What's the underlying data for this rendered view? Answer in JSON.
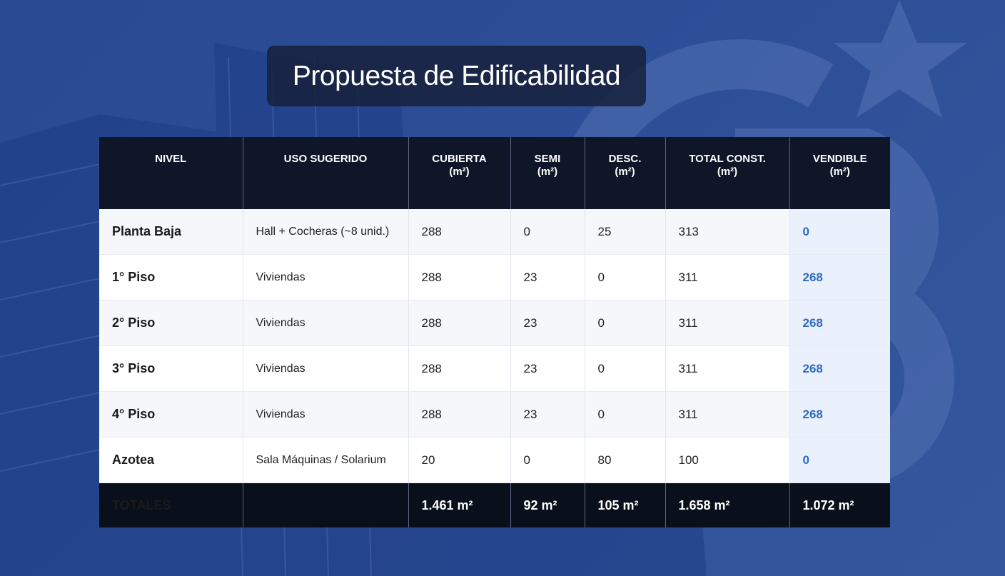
{
  "header": {
    "title": "Propuesta de Edificabilidad"
  },
  "table": {
    "columns": [
      {
        "label": "NIVEL"
      },
      {
        "label": "USO SUGERIDO"
      },
      {
        "label": "CUBIERTA",
        "unit": "(m²)"
      },
      {
        "label": "SEMI",
        "unit": "(m²)"
      },
      {
        "label": "DESC.",
        "unit": "(m²)"
      },
      {
        "label": "TOTAL CONST.",
        "unit": "(m²)"
      },
      {
        "label": "VENDIBLE",
        "unit": "(m²)"
      }
    ],
    "rows": [
      [
        "Planta Baja",
        "Hall + Cocheras (~8 unid.)",
        "288",
        "0",
        "25",
        "313",
        "0"
      ],
      [
        "1° Piso",
        "Viviendas",
        "288",
        "23",
        "0",
        "311",
        "268"
      ],
      [
        "2° Piso",
        "Viviendas",
        "288",
        "23",
        "0",
        "311",
        "268"
      ],
      [
        "3° Piso",
        "Viviendas",
        "288",
        "23",
        "0",
        "311",
        "268"
      ],
      [
        "4° Piso",
        "Viviendas",
        "288",
        "23",
        "0",
        "311",
        "268"
      ],
      [
        "Azotea",
        "Sala Máquinas / Solarium",
        "20",
        "0",
        "80",
        "100",
        "0"
      ]
    ],
    "totals": [
      "TOTALES",
      "1.461 m²",
      "92 m²",
      "105 m²",
      "1.658 m²",
      "1.072 m²"
    ]
  }
}
